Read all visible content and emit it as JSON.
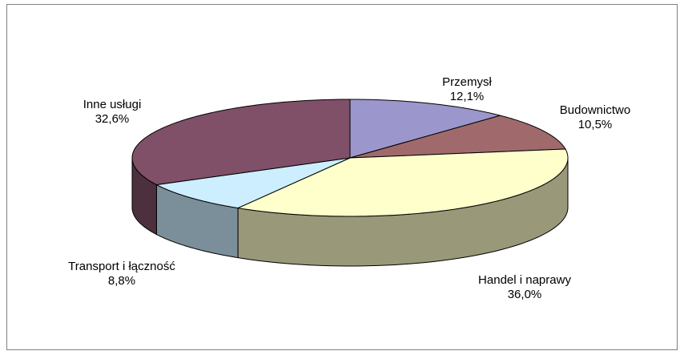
{
  "chart_data": {
    "type": "pie3d",
    "categories": [
      "Przemysł",
      "Budownictwo",
      "Handel i naprawy",
      "Transport i łączność",
      "Inne usługi"
    ],
    "values": [
      12.1,
      10.5,
      36.0,
      8.8,
      32.6
    ],
    "value_labels": [
      "12,1%",
      "10,5%",
      "36,0%",
      "8,8%",
      "32,6%"
    ],
    "colors": [
      "#9b97cc",
      "#a06a6c",
      "#ffffcc",
      "#cceeff",
      "#7f5068"
    ]
  }
}
